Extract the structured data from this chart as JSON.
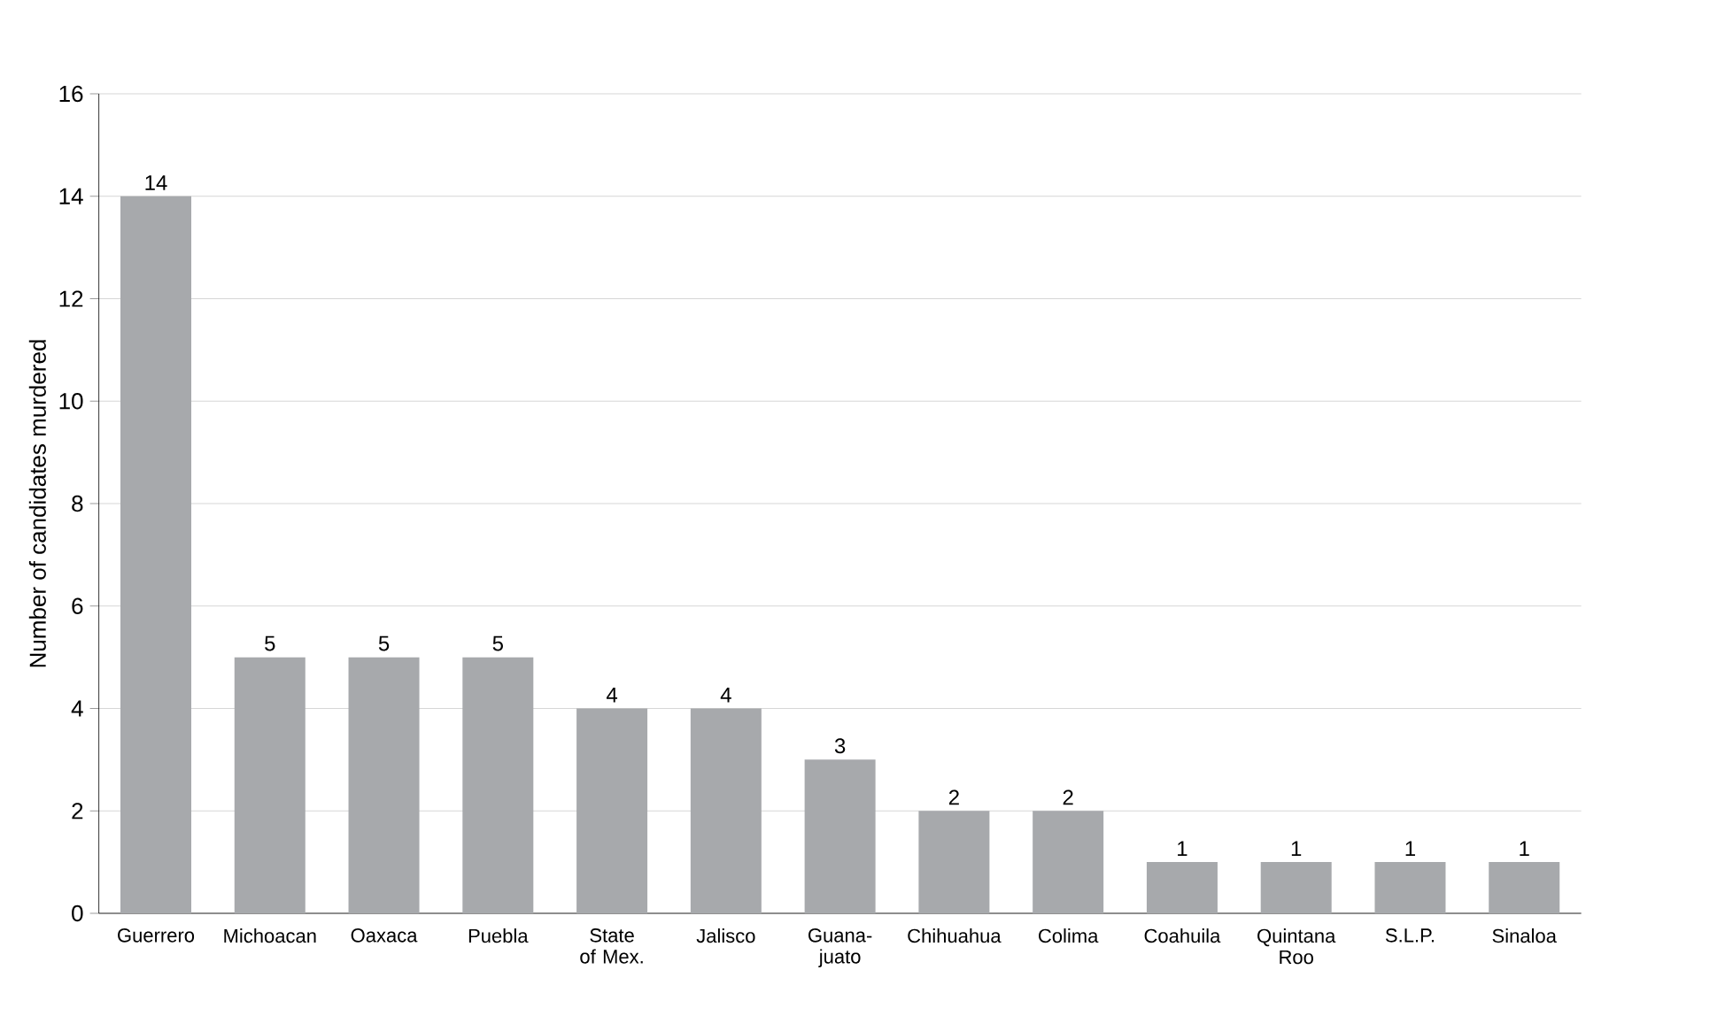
{
  "chart_data": {
    "type": "bar",
    "ylabel": "Number of candidates murdered",
    "categories": [
      "Guerrero",
      "Michoacan",
      "Oaxaca",
      "Puebla",
      "State of Mex.",
      "Jalisco",
      "Guana-juato",
      "Chihuahua",
      "Colima",
      "Coahuila",
      "Quintana Roo",
      "S.L.P.",
      "Sinaloa"
    ],
    "values": [
      14,
      5,
      5,
      5,
      4,
      4,
      3,
      2,
      2,
      1,
      1,
      1,
      1
    ],
    "color": "#a7a9ac",
    "ylim": [
      0,
      16
    ],
    "yticks": [
      0,
      2,
      4,
      6,
      8,
      10,
      12,
      14,
      16
    ],
    "grid": "y",
    "data_labels": true
  }
}
